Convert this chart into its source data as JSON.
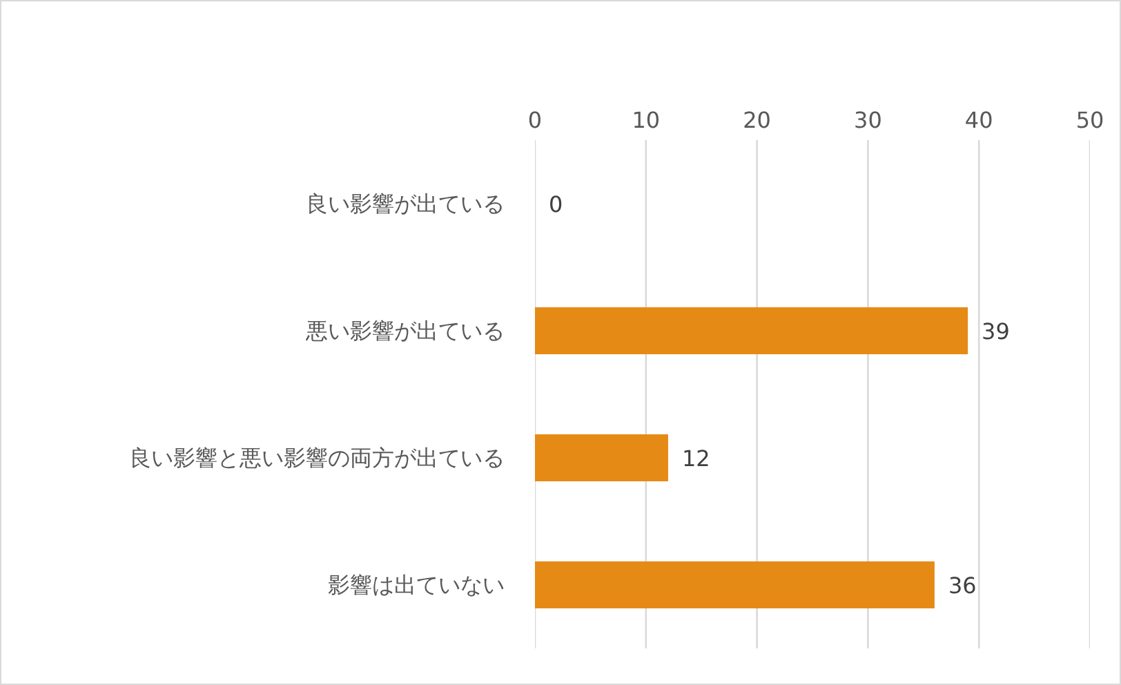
{
  "chart_data": {
    "type": "bar",
    "orientation": "horizontal",
    "categories": [
      "良い影響が出ている",
      "悪い影響が出ている",
      "良い影響と悪い影響の両方が出ている",
      "影響は出ていない"
    ],
    "values": [
      0,
      39,
      12,
      36
    ],
    "color": "#e68a16",
    "xlim": [
      0,
      50
    ],
    "xticks": [
      0,
      10,
      20,
      30,
      40,
      50
    ],
    "grid": "x",
    "data_labels": true
  }
}
